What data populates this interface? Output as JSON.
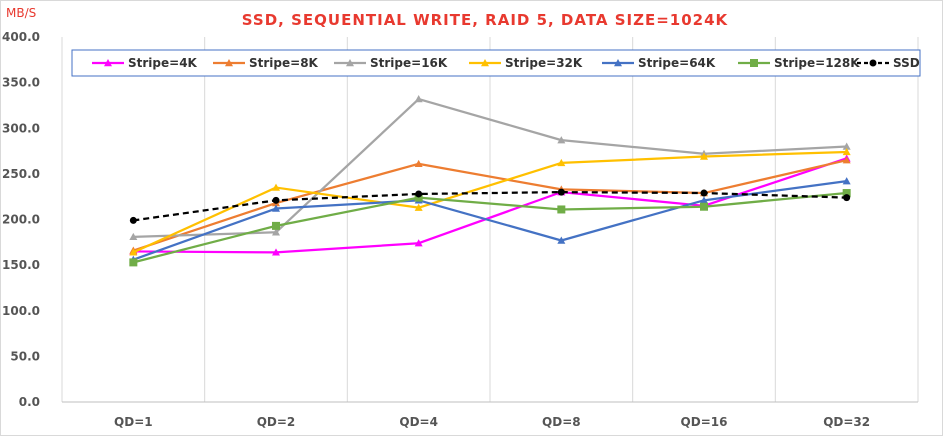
{
  "chart_data": {
    "type": "line",
    "title": "SSD, SEQUENTIAL WRITE, RAID 5, DATA SIZE=1024K",
    "ylabel": "MB/S",
    "xlabel": "",
    "categories": [
      "QD=1",
      "QD=2",
      "QD=4",
      "QD=8",
      "QD=16",
      "QD=32"
    ],
    "ylim": [
      0,
      400
    ],
    "ytick_step": 50,
    "ytick_labels": [
      "0.0",
      "50.0",
      "100.0",
      "150.0",
      "200.0",
      "250.0",
      "300.0",
      "350.0",
      "400.0"
    ],
    "grid": "vertical",
    "legend_position": "top",
    "series": [
      {
        "name": "Stripe=4K",
        "color": "#ff00ff",
        "marker": "triangle",
        "dashed": false,
        "values": [
          165,
          164,
          174,
          230,
          215,
          267
        ]
      },
      {
        "name": "Stripe=8K",
        "color": "#ed7d31",
        "marker": "triangle",
        "dashed": false,
        "values": [
          166,
          218,
          261,
          233,
          229,
          265
        ]
      },
      {
        "name": "Stripe=16K",
        "color": "#a5a5a5",
        "marker": "triangle",
        "dashed": false,
        "values": [
          181,
          186,
          332,
          287,
          272,
          280
        ]
      },
      {
        "name": "Stripe=32K",
        "color": "#ffc000",
        "marker": "triangle",
        "dashed": false,
        "values": [
          164,
          235,
          213,
          262,
          269,
          274
        ]
      },
      {
        "name": "Stripe=64K",
        "color": "#4472c4",
        "marker": "triangle",
        "dashed": false,
        "values": [
          156,
          212,
          221,
          177,
          221,
          242
        ]
      },
      {
        "name": "Stripe=128K",
        "color": "#70ad47",
        "marker": "square",
        "dashed": false,
        "values": [
          153,
          193,
          224,
          211,
          214,
          229
        ]
      },
      {
        "name": "SSD",
        "color": "#000000",
        "marker": "circle",
        "dashed": true,
        "values": [
          199,
          221,
          228,
          230,
          229,
          224
        ]
      }
    ]
  }
}
